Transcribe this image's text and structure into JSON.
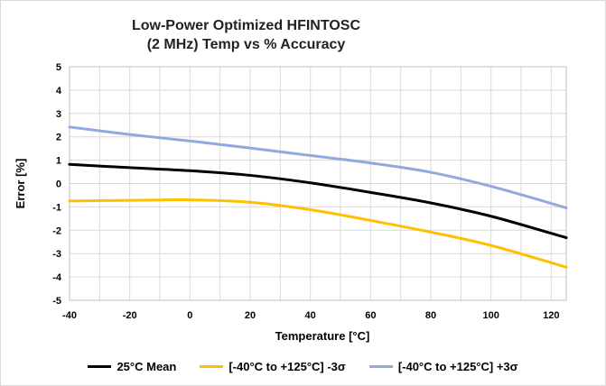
{
  "chart_data": {
    "type": "line",
    "title_line1": "Low-Power Optimized HFINTOSC",
    "title_line2": "(2 MHz) Temp vs % Accuracy",
    "xlabel": "Temperature [°C]",
    "ylabel": "Error [%]",
    "xlim": [
      -40,
      125
    ],
    "ylim": [
      -5,
      5
    ],
    "xticks": [
      -40,
      -20,
      0,
      20,
      40,
      60,
      80,
      100,
      120
    ],
    "yticks": [
      5,
      4,
      3,
      2,
      1,
      0,
      -1,
      -2,
      -3,
      -4,
      -5
    ],
    "grid": true,
    "legend_position": "bottom",
    "x": [
      -40,
      -20,
      0,
      20,
      40,
      60,
      80,
      100,
      125
    ],
    "series": [
      {
        "name": "25°C Mean",
        "color": "#000000",
        "values": [
          0.82,
          0.68,
          0.55,
          0.35,
          0.03,
          -0.38,
          -0.83,
          -1.4,
          -2.32
        ]
      },
      {
        "name": "[-40°C to +125°C]  -3σ",
        "color": "#ffc000",
        "values": [
          -0.75,
          -0.72,
          -0.7,
          -0.8,
          -1.12,
          -1.58,
          -2.08,
          -2.65,
          -3.58
        ]
      },
      {
        "name": "[-40°C to +125°C] +3σ",
        "color": "#8faadc",
        "values": [
          2.42,
          2.1,
          1.82,
          1.52,
          1.2,
          0.88,
          0.48,
          -0.12,
          -1.04
        ]
      }
    ]
  }
}
